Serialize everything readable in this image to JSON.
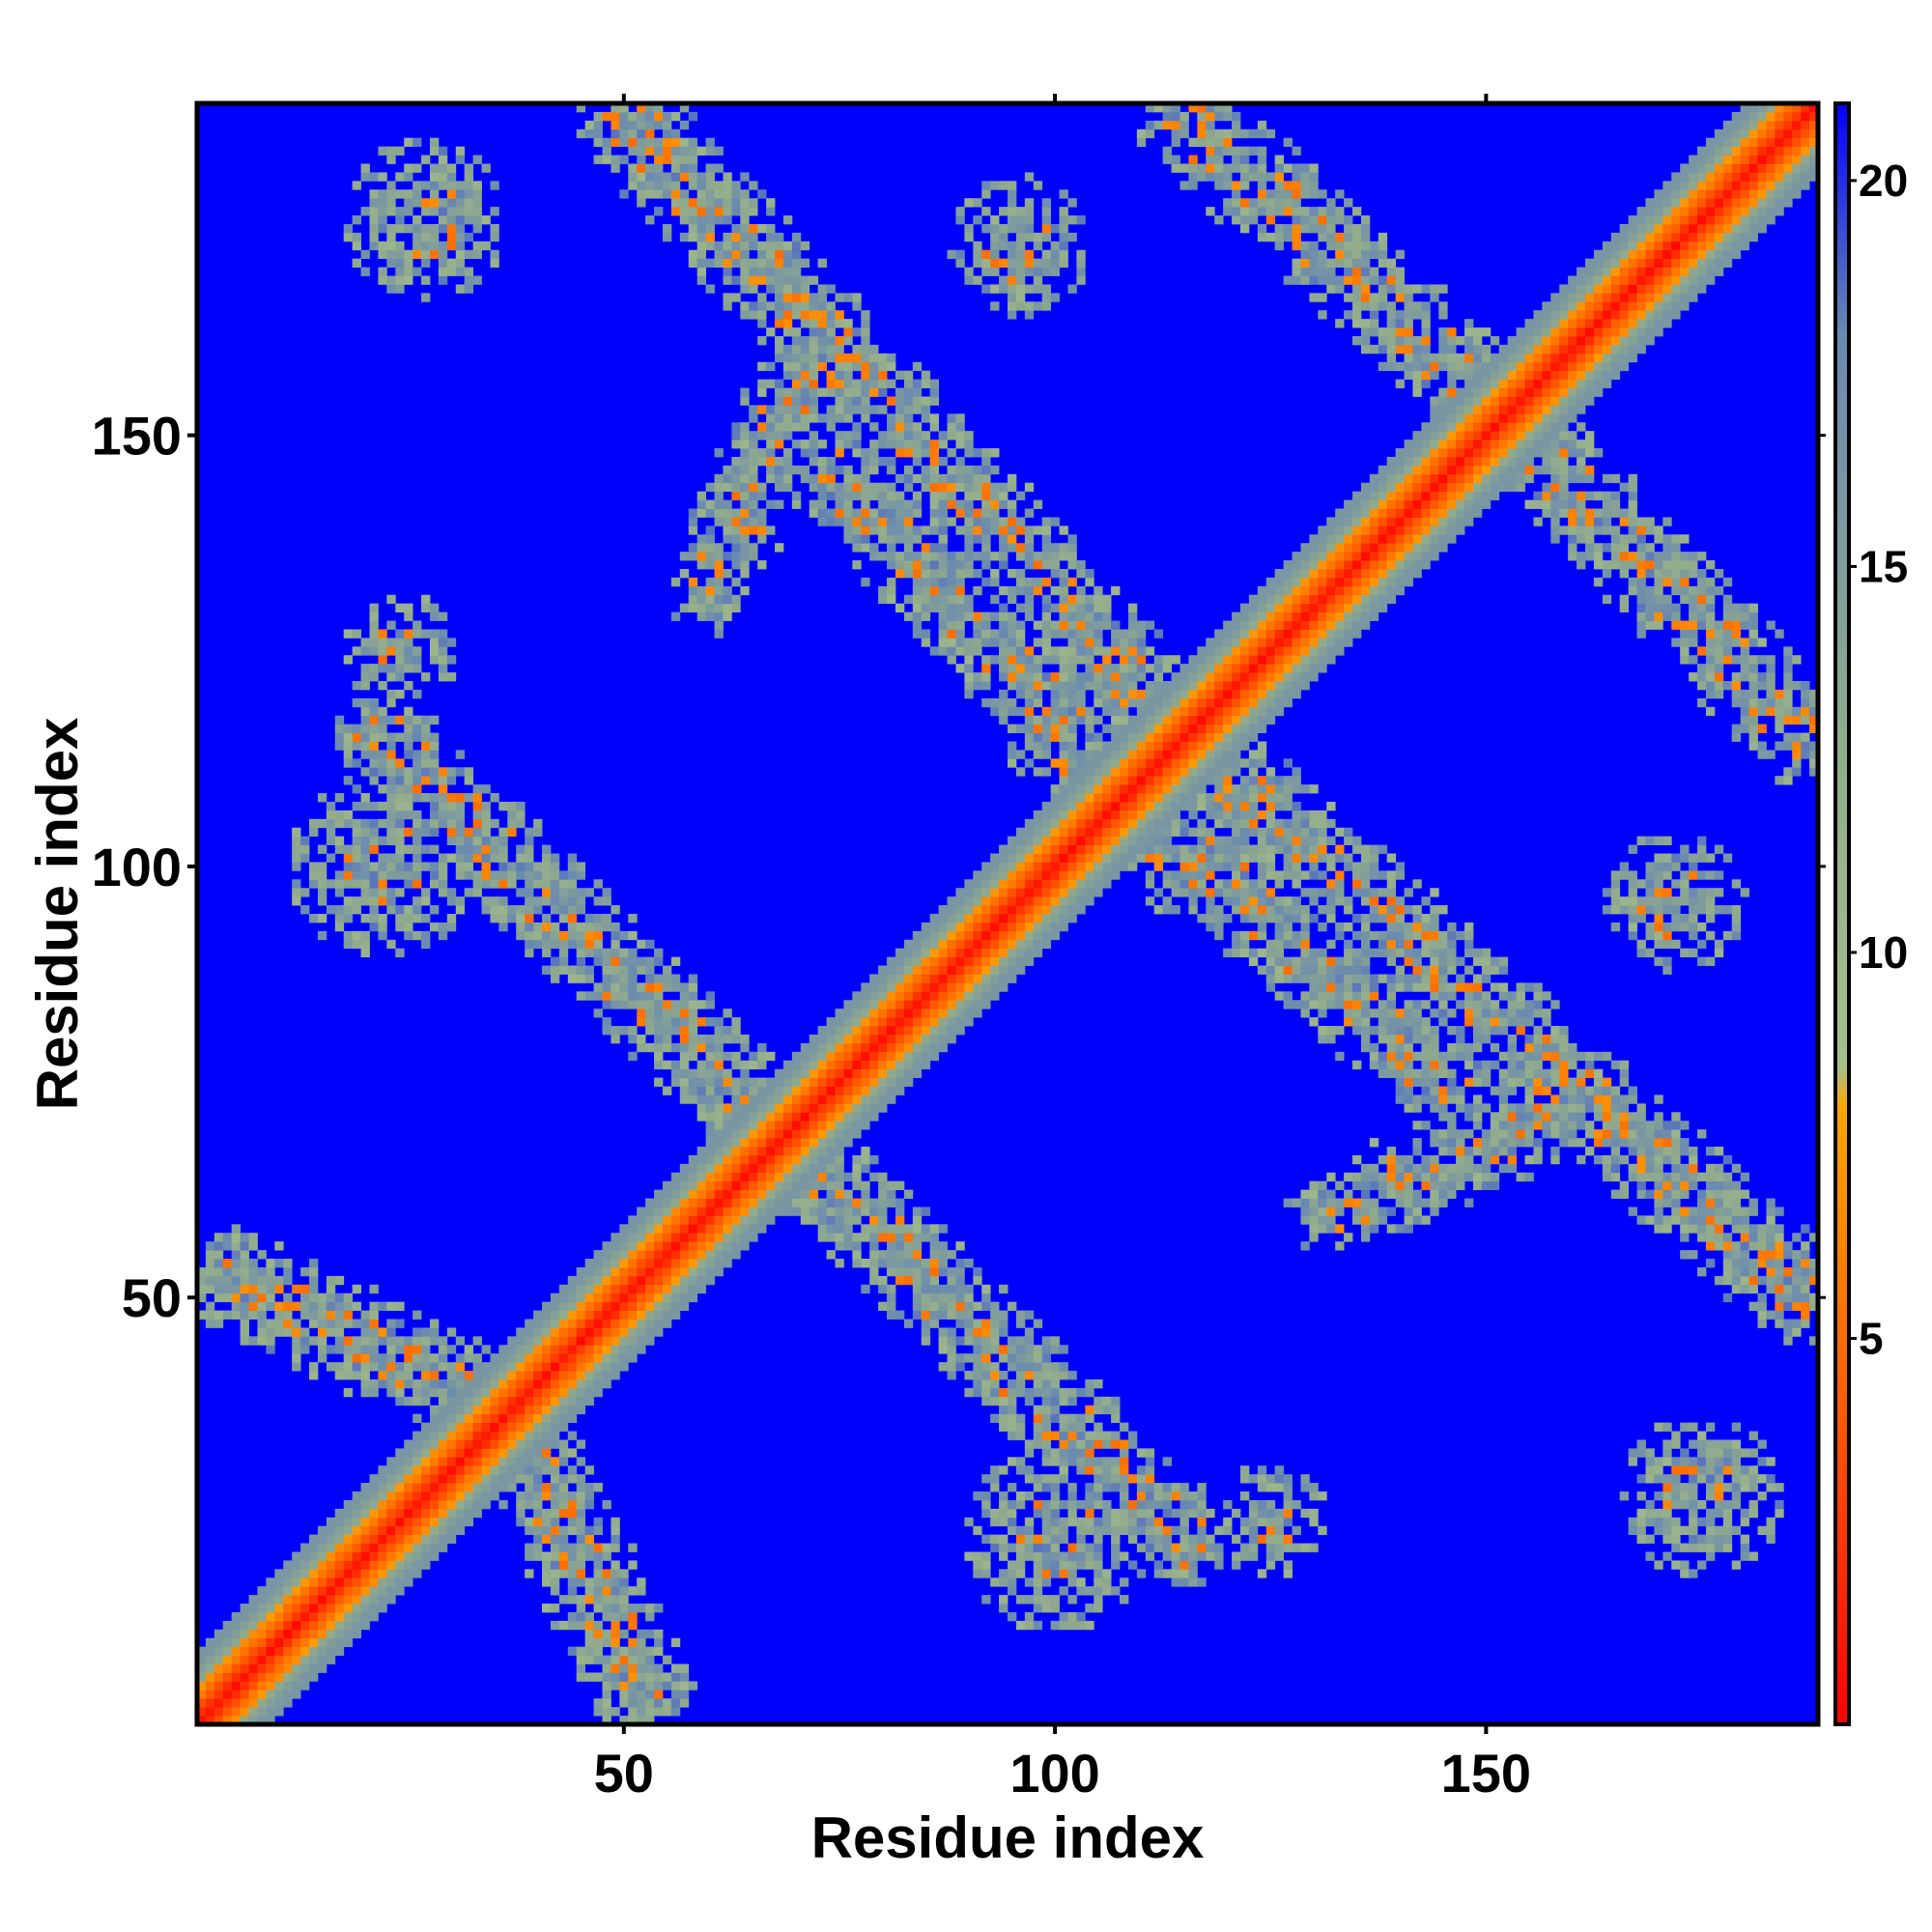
{
  "chart_data": {
    "type": "heatmap",
    "title": "",
    "xlabel": "Residue index",
    "ylabel": "Residue index",
    "n_residues": 188,
    "xlim": [
      1,
      188
    ],
    "ylim": [
      1,
      188
    ],
    "x_ticks": [
      50,
      100,
      150
    ],
    "y_ticks": [
      50,
      100,
      150
    ],
    "colorbar": {
      "range": [
        0,
        21
      ],
      "ticks": [
        5,
        10,
        15,
        20
      ],
      "stops": [
        {
          "value": 0,
          "color": "#ff0000"
        },
        {
          "value": 4,
          "color": "#ff5a00"
        },
        {
          "value": 8,
          "color": "#ffa500"
        },
        {
          "value": 8.5,
          "color": "#a8c08a"
        },
        {
          "value": 13,
          "color": "#8fa98e"
        },
        {
          "value": 18,
          "color": "#6a8ab0"
        },
        {
          "value": 21,
          "color": "#0000ff"
        }
      ]
    },
    "background_value": 21,
    "background_color": "#0000ff",
    "diagonal_band_halfwidth": 8,
    "contact_bands": [
      {
        "from": [
          5,
          52
        ],
        "to": [
          67,
          22
        ],
        "halfwidth": 4.5
      },
      {
        "from": [
          22,
          115
        ],
        "to": [
          75,
          62
        ],
        "halfwidth": 4.5
      },
      {
        "from": [
          50,
          187
        ],
        "to": [
          115,
          115
        ],
        "halfwidth": 4.5
      },
      {
        "from": [
          75,
          145
        ],
        "to": [
          135,
          80
        ],
        "halfwidth": 4.5
      },
      {
        "from": [
          115,
          187
        ],
        "to": [
          187,
          120
        ],
        "halfwidth": 4.5
      },
      {
        "from": [
          100,
          115
        ],
        "to": [
          187,
          50
        ],
        "halfwidth": 4.5
      },
      {
        "from": [
          85,
          62
        ],
        "to": [
          112,
          50
        ],
        "halfwidth": 4
      },
      {
        "from": [
          112,
          50
        ],
        "to": [
          125,
          68
        ],
        "halfwidth": 4
      },
      {
        "from": [
          60,
          132
        ],
        "to": [
          72,
          160
        ],
        "halfwidth": 4
      },
      {
        "from": [
          155,
          110
        ],
        "to": [
          172,
          100
        ],
        "halfwidth": 4
      },
      {
        "from": [
          155,
          65
        ],
        "to": [
          172,
          55
        ],
        "halfwidth": 4
      },
      {
        "from": [
          160,
          25
        ],
        "to": [
          178,
          42
        ],
        "halfwidth": 4
      }
    ],
    "contact_blobs": [
      {
        "center": [
          22,
          100
        ],
        "radius": 8
      },
      {
        "center": [
          27,
          175
        ],
        "radius": 7
      },
      {
        "center": [
          92,
          25
        ],
        "radius": 7
      },
      {
        "center": [
          96,
          172
        ],
        "radius": 6
      },
      {
        "center": [
          125,
          23
        ],
        "radius": 5
      },
      {
        "center": [
          24,
          125
        ],
        "radius": 5
      },
      {
        "center": [
          65,
          28
        ],
        "radius": 7
      }
    ]
  }
}
